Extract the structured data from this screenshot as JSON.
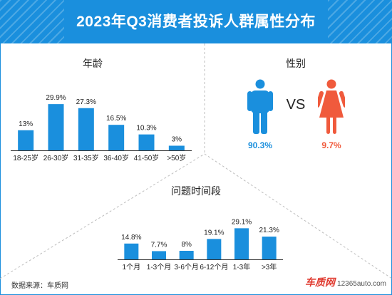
{
  "title": "2023年Q3消费者投诉人群属性分布",
  "colors": {
    "accent": "#1a8fdd",
    "male": "#1a8fdd",
    "female": "#f05a3c"
  },
  "age": {
    "title": "年龄"
  },
  "gender": {
    "title": "性别",
    "vs": "VS",
    "male_icon": "male-person-icon",
    "female_icon": "female-person-icon",
    "male_pct": "90.3%",
    "female_pct": "9.7%"
  },
  "duration": {
    "title": "问题时间段"
  },
  "source": "数据来源：车质网",
  "watermark": {
    "brand": "车质网",
    "site": "12365auto.com"
  },
  "chart_data": [
    {
      "type": "bar",
      "title": "年龄",
      "categories": [
        "18-25岁",
        "26-30岁",
        "31-35岁",
        "36-40岁",
        "41-50岁",
        ">50岁"
      ],
      "values": [
        13,
        29.9,
        27.3,
        16.5,
        10.3,
        3
      ],
      "labels": [
        "13%",
        "29.9%",
        "27.3%",
        "16.5%",
        "10.3%",
        "3%"
      ],
      "unit": "%"
    },
    {
      "type": "pie",
      "title": "性别",
      "categories": [
        "男",
        "女"
      ],
      "values": [
        90.3,
        9.7
      ],
      "labels": [
        "90.3%",
        "9.7%"
      ],
      "unit": "%"
    },
    {
      "type": "bar",
      "title": "问题时间段",
      "categories": [
        "1个月",
        "1-3个月",
        "3-6个月",
        "6-12个月",
        "1-3年",
        ">3年"
      ],
      "values": [
        14.8,
        7.7,
        8,
        19.1,
        29.1,
        21.3
      ],
      "labels": [
        "14.8%",
        "7.7%",
        "8%",
        "19.1%",
        "29.1%",
        "21.3%"
      ],
      "unit": "%"
    }
  ]
}
